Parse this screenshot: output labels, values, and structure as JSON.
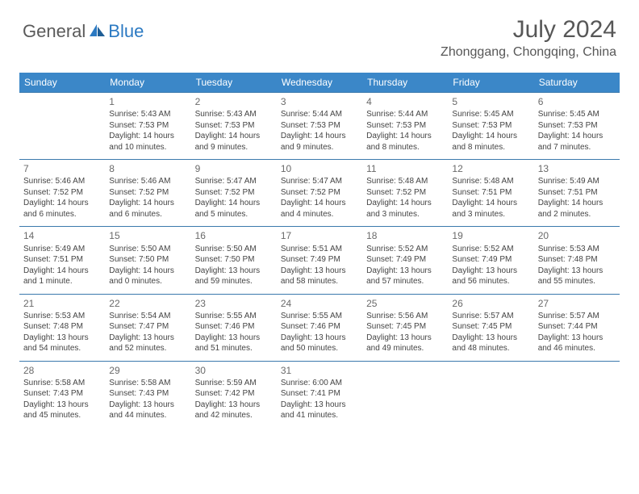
{
  "brand": {
    "part1": "General",
    "part2": "Blue"
  },
  "title": "July 2024",
  "location": "Zhonggang, Chongqing, China",
  "colors": {
    "header_bg": "#3b87c8",
    "header_text": "#ffffff",
    "rule": "#3b79ad",
    "text": "#444444",
    "title_text": "#575757",
    "brand_gray": "#5a5a5a",
    "brand_blue": "#2b79c2",
    "background": "#ffffff"
  },
  "typography": {
    "title_fontsize": 30,
    "location_fontsize": 16,
    "dayhead_fontsize": 12,
    "daynum_fontsize": 12,
    "body_fontsize": 10
  },
  "day_names": [
    "Sunday",
    "Monday",
    "Tuesday",
    "Wednesday",
    "Thursday",
    "Friday",
    "Saturday"
  ],
  "weeks": [
    [
      null,
      {
        "n": "1",
        "sr": "Sunrise: 5:43 AM",
        "ss": "Sunset: 7:53 PM",
        "d1": "Daylight: 14 hours",
        "d2": "and 10 minutes."
      },
      {
        "n": "2",
        "sr": "Sunrise: 5:43 AM",
        "ss": "Sunset: 7:53 PM",
        "d1": "Daylight: 14 hours",
        "d2": "and 9 minutes."
      },
      {
        "n": "3",
        "sr": "Sunrise: 5:44 AM",
        "ss": "Sunset: 7:53 PM",
        "d1": "Daylight: 14 hours",
        "d2": "and 9 minutes."
      },
      {
        "n": "4",
        "sr": "Sunrise: 5:44 AM",
        "ss": "Sunset: 7:53 PM",
        "d1": "Daylight: 14 hours",
        "d2": "and 8 minutes."
      },
      {
        "n": "5",
        "sr": "Sunrise: 5:45 AM",
        "ss": "Sunset: 7:53 PM",
        "d1": "Daylight: 14 hours",
        "d2": "and 8 minutes."
      },
      {
        "n": "6",
        "sr": "Sunrise: 5:45 AM",
        "ss": "Sunset: 7:53 PM",
        "d1": "Daylight: 14 hours",
        "d2": "and 7 minutes."
      }
    ],
    [
      {
        "n": "7",
        "sr": "Sunrise: 5:46 AM",
        "ss": "Sunset: 7:52 PM",
        "d1": "Daylight: 14 hours",
        "d2": "and 6 minutes."
      },
      {
        "n": "8",
        "sr": "Sunrise: 5:46 AM",
        "ss": "Sunset: 7:52 PM",
        "d1": "Daylight: 14 hours",
        "d2": "and 6 minutes."
      },
      {
        "n": "9",
        "sr": "Sunrise: 5:47 AM",
        "ss": "Sunset: 7:52 PM",
        "d1": "Daylight: 14 hours",
        "d2": "and 5 minutes."
      },
      {
        "n": "10",
        "sr": "Sunrise: 5:47 AM",
        "ss": "Sunset: 7:52 PM",
        "d1": "Daylight: 14 hours",
        "d2": "and 4 minutes."
      },
      {
        "n": "11",
        "sr": "Sunrise: 5:48 AM",
        "ss": "Sunset: 7:52 PM",
        "d1": "Daylight: 14 hours",
        "d2": "and 3 minutes."
      },
      {
        "n": "12",
        "sr": "Sunrise: 5:48 AM",
        "ss": "Sunset: 7:51 PM",
        "d1": "Daylight: 14 hours",
        "d2": "and 3 minutes."
      },
      {
        "n": "13",
        "sr": "Sunrise: 5:49 AM",
        "ss": "Sunset: 7:51 PM",
        "d1": "Daylight: 14 hours",
        "d2": "and 2 minutes."
      }
    ],
    [
      {
        "n": "14",
        "sr": "Sunrise: 5:49 AM",
        "ss": "Sunset: 7:51 PM",
        "d1": "Daylight: 14 hours",
        "d2": "and 1 minute."
      },
      {
        "n": "15",
        "sr": "Sunrise: 5:50 AM",
        "ss": "Sunset: 7:50 PM",
        "d1": "Daylight: 14 hours",
        "d2": "and 0 minutes."
      },
      {
        "n": "16",
        "sr": "Sunrise: 5:50 AM",
        "ss": "Sunset: 7:50 PM",
        "d1": "Daylight: 13 hours",
        "d2": "and 59 minutes."
      },
      {
        "n": "17",
        "sr": "Sunrise: 5:51 AM",
        "ss": "Sunset: 7:49 PM",
        "d1": "Daylight: 13 hours",
        "d2": "and 58 minutes."
      },
      {
        "n": "18",
        "sr": "Sunrise: 5:52 AM",
        "ss": "Sunset: 7:49 PM",
        "d1": "Daylight: 13 hours",
        "d2": "and 57 minutes."
      },
      {
        "n": "19",
        "sr": "Sunrise: 5:52 AM",
        "ss": "Sunset: 7:49 PM",
        "d1": "Daylight: 13 hours",
        "d2": "and 56 minutes."
      },
      {
        "n": "20",
        "sr": "Sunrise: 5:53 AM",
        "ss": "Sunset: 7:48 PM",
        "d1": "Daylight: 13 hours",
        "d2": "and 55 minutes."
      }
    ],
    [
      {
        "n": "21",
        "sr": "Sunrise: 5:53 AM",
        "ss": "Sunset: 7:48 PM",
        "d1": "Daylight: 13 hours",
        "d2": "and 54 minutes."
      },
      {
        "n": "22",
        "sr": "Sunrise: 5:54 AM",
        "ss": "Sunset: 7:47 PM",
        "d1": "Daylight: 13 hours",
        "d2": "and 52 minutes."
      },
      {
        "n": "23",
        "sr": "Sunrise: 5:55 AM",
        "ss": "Sunset: 7:46 PM",
        "d1": "Daylight: 13 hours",
        "d2": "and 51 minutes."
      },
      {
        "n": "24",
        "sr": "Sunrise: 5:55 AM",
        "ss": "Sunset: 7:46 PM",
        "d1": "Daylight: 13 hours",
        "d2": "and 50 minutes."
      },
      {
        "n": "25",
        "sr": "Sunrise: 5:56 AM",
        "ss": "Sunset: 7:45 PM",
        "d1": "Daylight: 13 hours",
        "d2": "and 49 minutes."
      },
      {
        "n": "26",
        "sr": "Sunrise: 5:57 AM",
        "ss": "Sunset: 7:45 PM",
        "d1": "Daylight: 13 hours",
        "d2": "and 48 minutes."
      },
      {
        "n": "27",
        "sr": "Sunrise: 5:57 AM",
        "ss": "Sunset: 7:44 PM",
        "d1": "Daylight: 13 hours",
        "d2": "and 46 minutes."
      }
    ],
    [
      {
        "n": "28",
        "sr": "Sunrise: 5:58 AM",
        "ss": "Sunset: 7:43 PM",
        "d1": "Daylight: 13 hours",
        "d2": "and 45 minutes."
      },
      {
        "n": "29",
        "sr": "Sunrise: 5:58 AM",
        "ss": "Sunset: 7:43 PM",
        "d1": "Daylight: 13 hours",
        "d2": "and 44 minutes."
      },
      {
        "n": "30",
        "sr": "Sunrise: 5:59 AM",
        "ss": "Sunset: 7:42 PM",
        "d1": "Daylight: 13 hours",
        "d2": "and 42 minutes."
      },
      {
        "n": "31",
        "sr": "Sunrise: 6:00 AM",
        "ss": "Sunset: 7:41 PM",
        "d1": "Daylight: 13 hours",
        "d2": "and 41 minutes."
      },
      null,
      null,
      null
    ]
  ]
}
